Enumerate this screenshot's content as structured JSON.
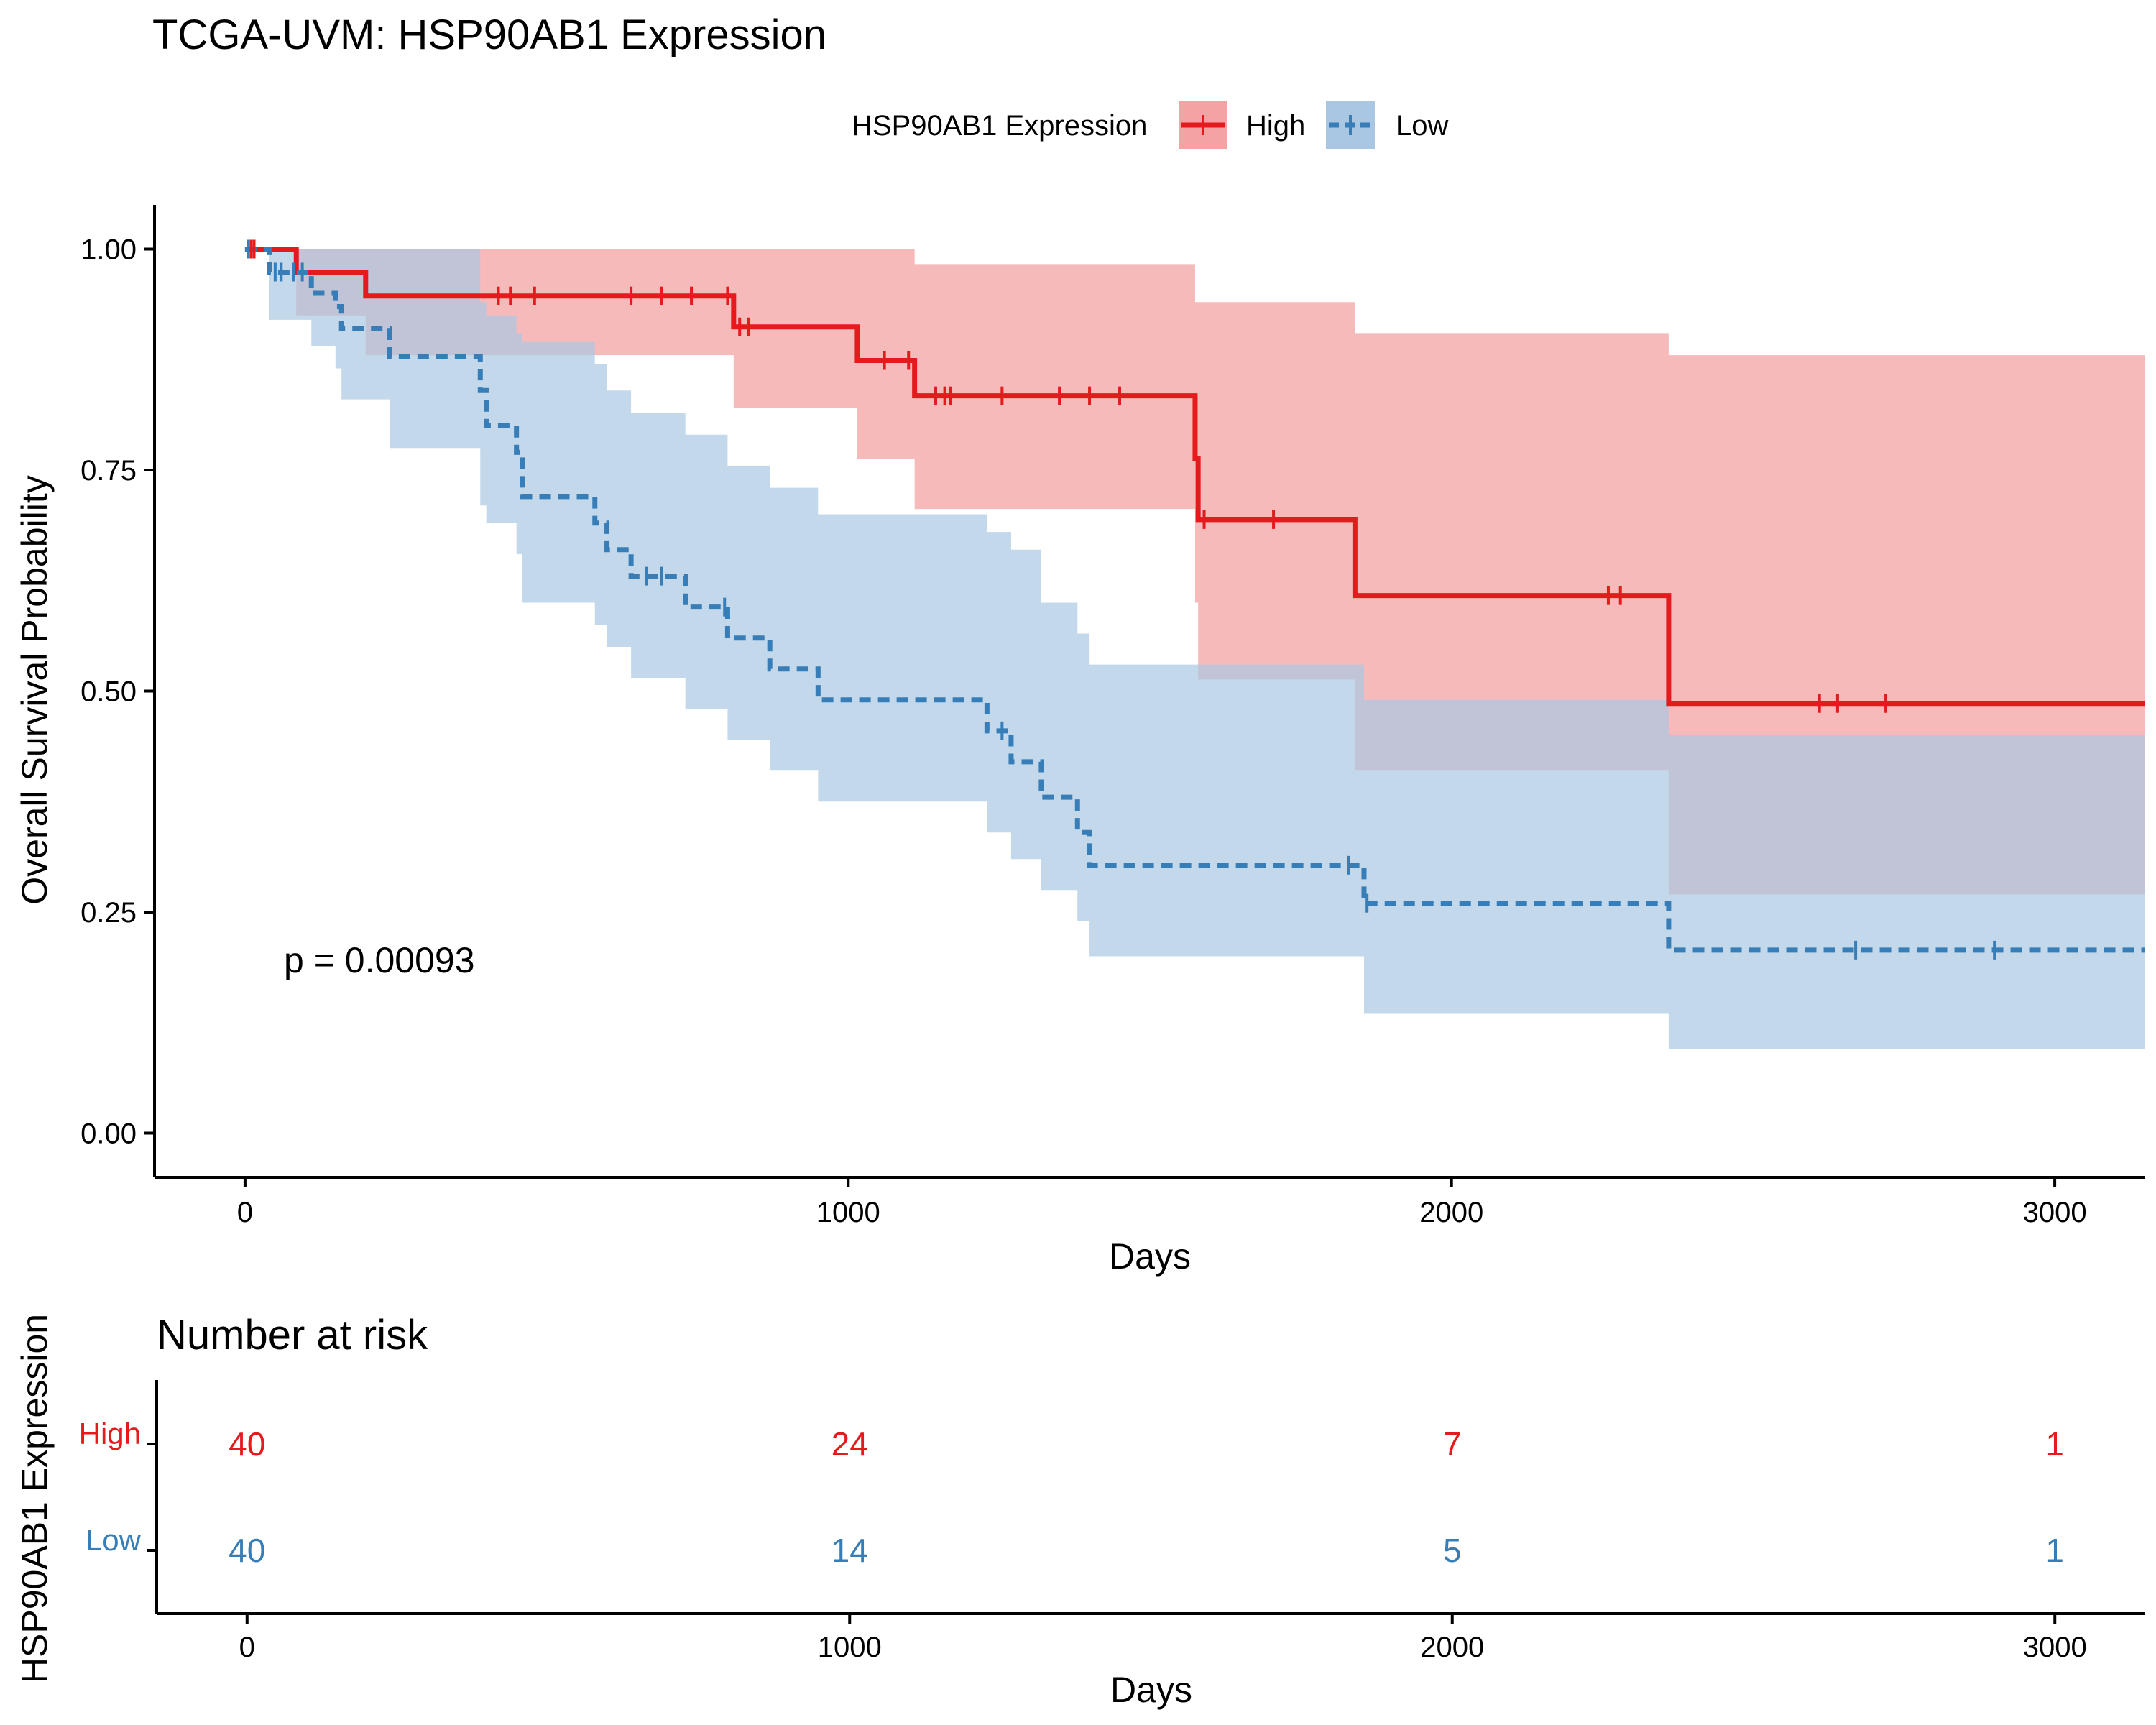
{
  "title": "TCGA-UVM: HSP90AB1 Expression",
  "legend": {
    "title": "HSP90AB1 Expression",
    "placement": "top",
    "entries": [
      {
        "label": "High",
        "series": "High"
      },
      {
        "label": "Low",
        "series": "Low"
      }
    ]
  },
  "colors": {
    "High": "#e41a1c",
    "High_band": "#f4a3a4",
    "Low": "#377eb8",
    "Low_band": "#a9c7e2",
    "axis": "#000000"
  },
  "chart_data": [
    {
      "type": "line",
      "subtype": "kaplan-meier",
      "title": "TCGA-UVM: HSP90AB1 Expression",
      "xlabel": "Days",
      "ylabel": "Overall Survival Probability",
      "xlim": [
        -150,
        3150
      ],
      "ylim": [
        -0.05,
        1.05
      ],
      "xticks": [
        0,
        1000,
        2000,
        3000
      ],
      "yticks": [
        0.0,
        0.25,
        0.5,
        0.75,
        1.0
      ],
      "ytick_labels": [
        "0.00",
        "0.25",
        "0.50",
        "0.75",
        "1.00"
      ],
      "grid": false,
      "annotation": "p = 0.00093",
      "series": [
        {
          "name": "High",
          "line": "solid",
          "steps": [
            [
              0,
              1.0
            ],
            [
              85,
              0.974
            ],
            [
              200,
              0.947
            ],
            [
              810,
              0.912
            ],
            [
              1015,
              0.874
            ],
            [
              1110,
              0.834
            ],
            [
              1575,
              0.763
            ],
            [
              1580,
              0.694
            ],
            [
              1840,
              0.608
            ],
            [
              2360,
              0.486
            ],
            [
              3150,
              0.486
            ]
          ],
          "band": [
            [
              0,
              1.0,
              1.0
            ],
            [
              85,
              1.0,
              0.925
            ],
            [
              200,
              1.0,
              0.88
            ],
            [
              810,
              1.0,
              0.82
            ],
            [
              1015,
              1.0,
              0.763
            ],
            [
              1110,
              0.983,
              0.706
            ],
            [
              1575,
              0.94,
              0.6
            ],
            [
              1580,
              0.94,
              0.513
            ],
            [
              1840,
              0.905,
              0.41
            ],
            [
              2360,
              0.88,
              0.27
            ],
            [
              3150,
              0.88,
              0.27
            ]
          ],
          "censors": [
            [
              10,
              1.0
            ],
            [
              15,
              1.0
            ],
            [
              420,
              0.947
            ],
            [
              440,
              0.947
            ],
            [
              480,
              0.947
            ],
            [
              640,
              0.947
            ],
            [
              690,
              0.947
            ],
            [
              740,
              0.947
            ],
            [
              800,
              0.947
            ],
            [
              820,
              0.912
            ],
            [
              835,
              0.912
            ],
            [
              1060,
              0.874
            ],
            [
              1100,
              0.874
            ],
            [
              1145,
              0.834
            ],
            [
              1160,
              0.834
            ],
            [
              1170,
              0.834
            ],
            [
              1255,
              0.834
            ],
            [
              1350,
              0.834
            ],
            [
              1400,
              0.834
            ],
            [
              1450,
              0.834
            ],
            [
              1590,
              0.694
            ],
            [
              1705,
              0.694
            ],
            [
              2260,
              0.608
            ],
            [
              2280,
              0.608
            ],
            [
              2610,
              0.486
            ],
            [
              2640,
              0.486
            ],
            [
              2720,
              0.486
            ]
          ]
        },
        {
          "name": "Low",
          "line": "dashed",
          "steps": [
            [
              0,
              1.0
            ],
            [
              40,
              0.974
            ],
            [
              110,
              0.95
            ],
            [
              150,
              0.935
            ],
            [
              160,
              0.91
            ],
            [
              240,
              0.878
            ],
            [
              390,
              0.84
            ],
            [
              400,
              0.8
            ],
            [
              450,
              0.77
            ],
            [
              460,
              0.72
            ],
            [
              580,
              0.69
            ],
            [
              600,
              0.66
            ],
            [
              640,
              0.63
            ],
            [
              730,
              0.595
            ],
            [
              800,
              0.56
            ],
            [
              870,
              0.525
            ],
            [
              950,
              0.49
            ],
            [
              1230,
              0.455
            ],
            [
              1270,
              0.42
            ],
            [
              1320,
              0.38
            ],
            [
              1380,
              0.34
            ],
            [
              1400,
              0.303
            ],
            [
              1855,
              0.26
            ],
            [
              2360,
              0.207
            ],
            [
              3150,
              0.207
            ]
          ],
          "band": [
            [
              0,
              1.0,
              1.0
            ],
            [
              40,
              1.0,
              0.92
            ],
            [
              110,
              1.0,
              0.89
            ],
            [
              150,
              1.0,
              0.865
            ],
            [
              160,
              1.0,
              0.83
            ],
            [
              240,
              1.0,
              0.775
            ],
            [
              390,
              0.94,
              0.71
            ],
            [
              400,
              0.925,
              0.69
            ],
            [
              450,
              0.905,
              0.655
            ],
            [
              460,
              0.895,
              0.6
            ],
            [
              580,
              0.87,
              0.575
            ],
            [
              600,
              0.84,
              0.55
            ],
            [
              640,
              0.815,
              0.515
            ],
            [
              730,
              0.79,
              0.48
            ],
            [
              800,
              0.755,
              0.445
            ],
            [
              870,
              0.73,
              0.41
            ],
            [
              950,
              0.7,
              0.375
            ],
            [
              1230,
              0.68,
              0.34
            ],
            [
              1270,
              0.66,
              0.31
            ],
            [
              1320,
              0.6,
              0.275
            ],
            [
              1380,
              0.565,
              0.24
            ],
            [
              1400,
              0.53,
              0.2
            ],
            [
              1855,
              0.49,
              0.135
            ],
            [
              2360,
              0.45,
              0.095
            ],
            [
              3150,
              0.45,
              0.095
            ]
          ],
          "censors": [
            [
              5,
              1.0
            ],
            [
              50,
              0.974
            ],
            [
              60,
              0.974
            ],
            [
              80,
              0.974
            ],
            [
              95,
              0.974
            ],
            [
              665,
              0.63
            ],
            [
              690,
              0.63
            ],
            [
              795,
              0.595
            ],
            [
              1255,
              0.455
            ],
            [
              1830,
              0.303
            ],
            [
              1860,
              0.26
            ],
            [
              2670,
              0.207
            ],
            [
              2900,
              0.207
            ]
          ]
        }
      ]
    },
    {
      "type": "table",
      "title": "Number at risk",
      "xlabel": "Days",
      "ylabel": "HSP90AB1 Expression",
      "xlim": [
        -150,
        3150
      ],
      "xticks": [
        0,
        1000,
        2000,
        3000
      ],
      "rows": [
        {
          "name": "High",
          "times": [
            0,
            1000,
            2000,
            3000
          ],
          "values": [
            40,
            24,
            7,
            1
          ]
        },
        {
          "name": "Low",
          "times": [
            0,
            1000,
            2000,
            3000
          ],
          "values": [
            40,
            14,
            5,
            1
          ]
        }
      ]
    }
  ]
}
